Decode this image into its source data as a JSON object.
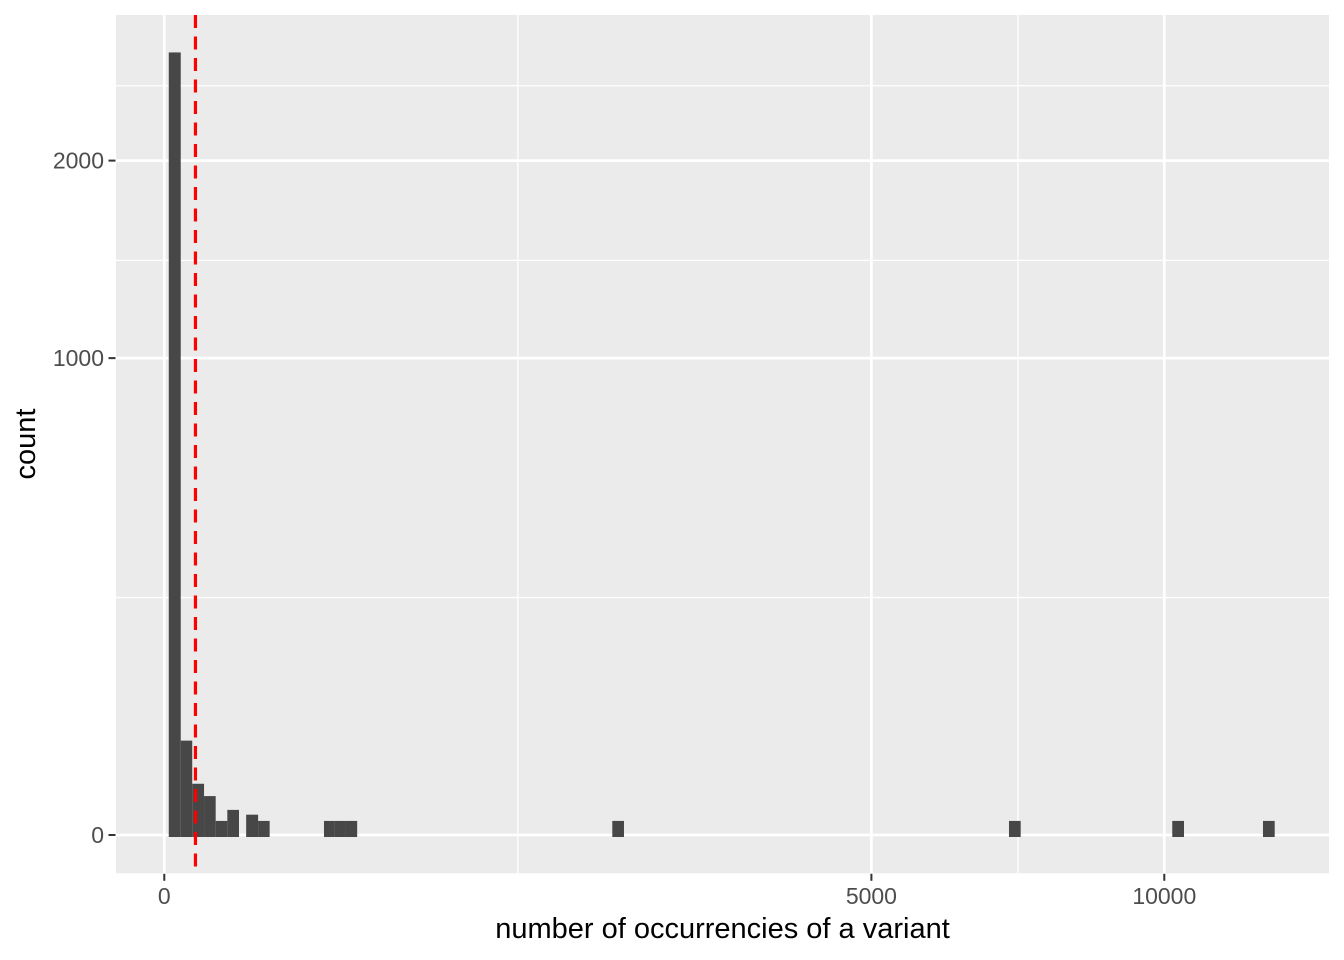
{
  "chart_data": {
    "type": "histogram",
    "title": "",
    "xlabel": "number of occurrencies of a variant",
    "ylabel": "count",
    "grid": "on",
    "legend": "none",
    "x_axis": {
      "transform": "sqrt",
      "range": [
        0,
        12900
      ],
      "ticks": [
        {
          "value": 0,
          "label": "0"
        },
        {
          "value": 5000,
          "label": "5000"
        },
        {
          "value": 10000,
          "label": "10000"
        }
      ],
      "minor_breaks": [
        1250,
        7287
      ]
    },
    "y_axis": {
      "transform": "sqrt",
      "range": [
        0,
        2960
      ],
      "ticks": [
        {
          "value": 0,
          "label": "0"
        },
        {
          "value": 1000,
          "label": "1000"
        },
        {
          "value": 2000,
          "label": "2000"
        }
      ],
      "minor_breaks": [
        250,
        1457,
        2475
      ]
    },
    "bins": [
      {
        "from": 0.2,
        "to": 2.7,
        "count": 2700
      },
      {
        "from": 2.7,
        "to": 7.8,
        "count": 40
      },
      {
        "from": 7.8,
        "to": 15.8,
        "count": 12
      },
      {
        "from": 15.8,
        "to": 26.4,
        "count": 7
      },
      {
        "from": 26.4,
        "to": 39.7,
        "count": 1
      },
      {
        "from": 39.7,
        "to": 55.8,
        "count": 3
      },
      {
        "from": 67,
        "to": 88,
        "count": 2
      },
      {
        "from": 88,
        "to": 111,
        "count": 1
      },
      {
        "from": 255,
        "to": 291,
        "count": 1
      },
      {
        "from": 291,
        "to": 330,
        "count": 1
      },
      {
        "from": 330,
        "to": 372,
        "count": 1
      },
      {
        "from": 2007,
        "to": 2113,
        "count": 1
      },
      {
        "from": 7135,
        "to": 7334,
        "count": 1
      },
      {
        "from": 10160,
        "to": 10398,
        "count": 1
      },
      {
        "from": 12071,
        "to": 12330,
        "count": 1
      }
    ],
    "vline": {
      "value": 9.7,
      "style": "dashed"
    },
    "colors": {
      "panel_bg": "#EBEBEB",
      "grid": "#FFFFFF",
      "bar_fill": "#474747",
      "vline": "#FF0000",
      "tick_text": "#4D4D4D",
      "axis_title": "#000000",
      "tick_mark": "#333333"
    }
  }
}
